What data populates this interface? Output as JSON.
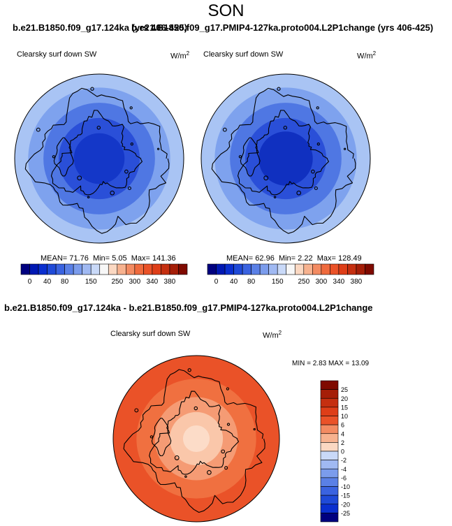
{
  "page": {
    "season": "SON",
    "top_title_a": "b.e21.B1850.f09_g17.124ka (yrs 406-425)",
    "top_title_b": "b.e21.B1850.f09_g17.PMIP4-127ka.proto004.L2P1change (yrs 406-425)",
    "diff_title": "b.e21.B1850.f09_g17.124ka - b.e21.B1850.f09_g17.PMIP4-127ka.proto004.L2P1change"
  },
  "colors": {
    "neg": [
      "#00007f",
      "#0018b3",
      "#0a2fcf",
      "#1f4ad8",
      "#3a63e0",
      "#5a80e6",
      "#7b9cec",
      "#a0b9f2",
      "#c9d9f8"
    ],
    "neutral": "#f7f7f7",
    "pos": [
      "#fbd8c2",
      "#f7b28f",
      "#f38b62",
      "#ef6a3d",
      "#ea5228",
      "#de3e18",
      "#c52f10",
      "#a51e08",
      "#7f0a00"
    ]
  },
  "chart_data": [
    {
      "type": "heatmap",
      "projection": "north-polar-stereographic",
      "title": "Clearsky surf down SW",
      "units_base": "W/m",
      "units_exp": "2",
      "stats": {
        "mean_label": "MEAN=",
        "mean": "71.76",
        "min_label": "Min=",
        "min": "5.05",
        "max_label": "Max=",
        "max": "141.36"
      },
      "colorbar_ticks": [
        "0",
        "40",
        "80",
        "150",
        "250",
        "300",
        "340",
        "380"
      ],
      "levels_from_pole": [
        5,
        20,
        40,
        60,
        80,
        100,
        120,
        141
      ]
    },
    {
      "type": "heatmap",
      "projection": "north-polar-stereographic",
      "title": "Clearsky surf down SW",
      "units_base": "W/m",
      "units_exp": "2",
      "stats": {
        "mean_label": "MEAN=",
        "mean": "62.96",
        "min_label": "Min=",
        "min": "2.22",
        "max_label": "Max=",
        "max": "128.49"
      },
      "colorbar_ticks": [
        "0",
        "40",
        "80",
        "150",
        "250",
        "300",
        "340",
        "380"
      ],
      "levels_from_pole": [
        2,
        20,
        40,
        60,
        80,
        100,
        120,
        128
      ]
    },
    {
      "type": "heatmap",
      "projection": "north-polar-stereographic",
      "title": "Clearsky surf down SW",
      "units_base": "W/m",
      "units_exp": "2",
      "stats": {
        "min_label": "MIN =",
        "min": "2.83",
        "max_label": "MAX =",
        "max": "13.09"
      },
      "colorbar_labels": [
        "25",
        "20",
        "15",
        "10",
        "6",
        "4",
        "2",
        "0",
        "-2",
        "-4",
        "-6",
        "-10",
        "-15",
        "-20",
        "-25"
      ],
      "levels_from_pole": [
        3,
        6,
        10,
        13
      ]
    }
  ]
}
